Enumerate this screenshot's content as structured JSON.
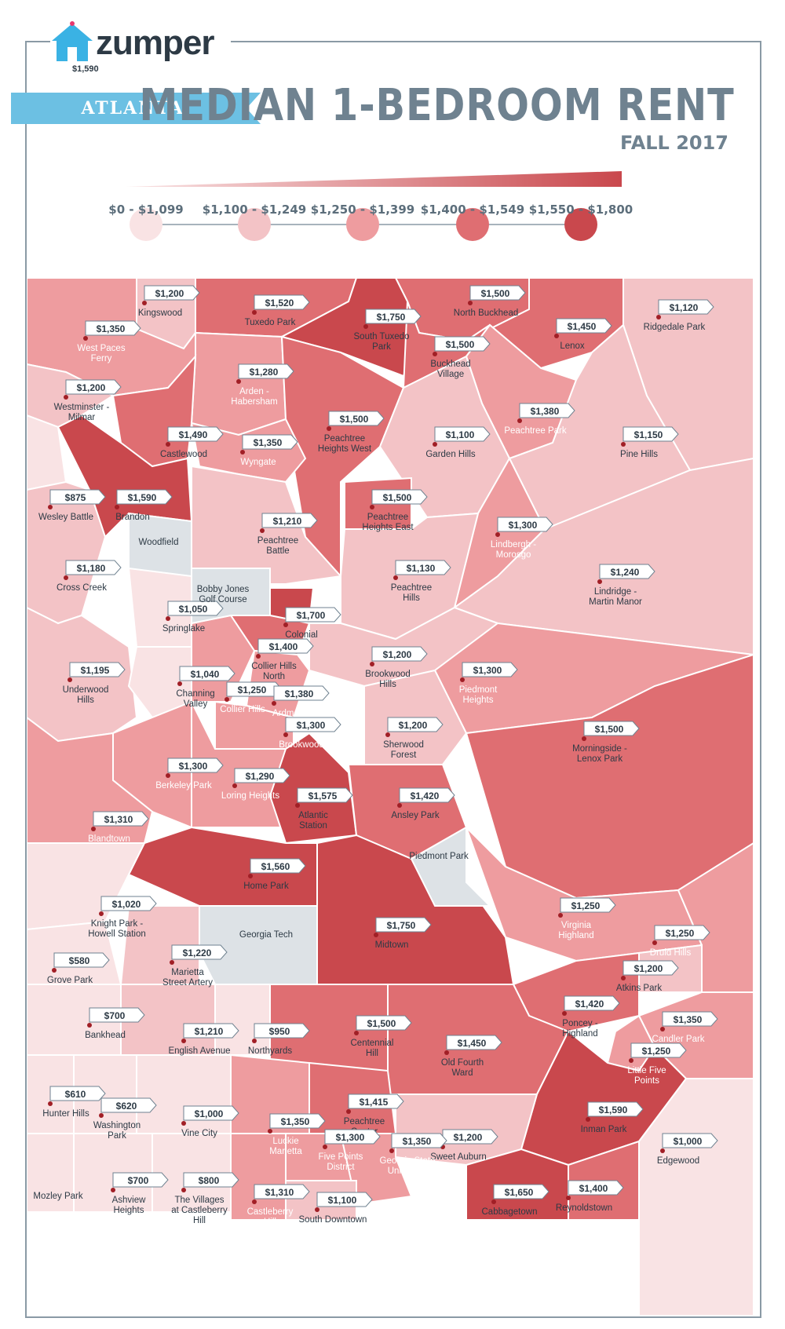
{
  "brand": {
    "name": "zumper",
    "price_tag": "$1,590"
  },
  "header": {
    "city": "ATLANTA",
    "title": "MEDIAN 1-BEDROOM RENT",
    "subtitle": "FALL 2017"
  },
  "colors": {
    "c0": "#f9e3e4",
    "c1": "#f3c3c6",
    "c2": "#ee9c9f",
    "c3": "#df6e72",
    "c4": "#c9484d",
    "gray": "#dde2e6",
    "ribbon": "#6cc0e3",
    "frame": "#8a9aa5",
    "title": "#6f8290"
  },
  "legend": [
    {
      "label": "$0 - $1,099",
      "color": "#f9e3e4"
    },
    {
      "label": "$1,100 - $1,249",
      "color": "#f3c3c6"
    },
    {
      "label": "$1,250 - $1,399",
      "color": "#ee9c9f"
    },
    {
      "label": "$1,400 - $1,549",
      "color": "#df6e72"
    },
    {
      "label": "$1,550 - $1,800",
      "color": "#c9484d"
    }
  ],
  "neighborhoods": [
    {
      "name": "Kingswood",
      "price": "$1,200"
    },
    {
      "name": "Tuxedo Park",
      "price": "$1,520"
    },
    {
      "name": "North Buckhead",
      "price": "$1,500"
    },
    {
      "name": "South Tuxedo Park",
      "price": "$1,750"
    },
    {
      "name": "Ridgedale Park",
      "price": "$1,120"
    },
    {
      "name": "West Paces Ferry",
      "price": "$1,350"
    },
    {
      "name": "Lenox",
      "price": "$1,450"
    },
    {
      "name": "Buckhead Village",
      "price": "$1,500"
    },
    {
      "name": "Arden - Habersham",
      "price": "$1,280"
    },
    {
      "name": "Westminster - Milmar",
      "price": "$1,200"
    },
    {
      "name": "Peachtree Park",
      "price": "$1,380"
    },
    {
      "name": "Peachtree Heights West",
      "price": "$1,500"
    },
    {
      "name": "Castlewood",
      "price": "$1,490"
    },
    {
      "name": "Garden Hills",
      "price": "$1,100"
    },
    {
      "name": "Pine Hills",
      "price": "$1,150"
    },
    {
      "name": "Wyngate",
      "price": "$1,350"
    },
    {
      "name": "Wesley Battle",
      "price": "$875"
    },
    {
      "name": "Brandon",
      "price": "$1,590"
    },
    {
      "name": "Peachtree Heights East",
      "price": "$1,500"
    },
    {
      "name": "Peachtree Battle",
      "price": "$1,210"
    },
    {
      "name": "Lindbergh - Morosgo",
      "price": "$1,300"
    },
    {
      "name": "Cross Creek",
      "price": "$1,180"
    },
    {
      "name": "Peachtree Hills",
      "price": "$1,130"
    },
    {
      "name": "Lindridge - Martin Manor",
      "price": "$1,240"
    },
    {
      "name": "Springlake",
      "price": "$1,050"
    },
    {
      "name": "Colonial",
      "price": "$1,700"
    },
    {
      "name": "Collier Hills North",
      "price": "$1,400"
    },
    {
      "name": "Brookwood Hills",
      "price": "$1,200"
    },
    {
      "name": "Underwood Hills",
      "price": "$1,195"
    },
    {
      "name": "Channing Valley",
      "price": "$1,040"
    },
    {
      "name": "Piedmont Heights",
      "price": "$1,300"
    },
    {
      "name": "Collier Hills",
      "price": "$1,250"
    },
    {
      "name": "Ardmore",
      "price": "$1,380"
    },
    {
      "name": "Brookwood",
      "price": "$1,300"
    },
    {
      "name": "Sherwood Forest",
      "price": "$1,200"
    },
    {
      "name": "Morningside - Lenox Park",
      "price": "$1,500"
    },
    {
      "name": "Berkeley Park",
      "price": "$1,300"
    },
    {
      "name": "Loring Heights",
      "price": "$1,290"
    },
    {
      "name": "Atlantic Station",
      "price": "$1,575"
    },
    {
      "name": "Ansley Park",
      "price": "$1,420"
    },
    {
      "name": "Blandtown",
      "price": "$1,310"
    },
    {
      "name": "Home Park",
      "price": "$1,560"
    },
    {
      "name": "Knight Park - Howell Station",
      "price": "$1,020"
    },
    {
      "name": "Virginia Highland",
      "price": "$1,250"
    },
    {
      "name": "Midtown",
      "price": "$1,750"
    },
    {
      "name": "Druid Hills",
      "price": "$1,250"
    },
    {
      "name": "Marietta Street Artery",
      "price": "$1,220"
    },
    {
      "name": "Atkins Park",
      "price": "$1,200"
    },
    {
      "name": "Grove Park",
      "price": "$580"
    },
    {
      "name": "Poncey - Highland",
      "price": "$1,420"
    },
    {
      "name": "Bankhead",
      "price": "$700"
    },
    {
      "name": "Candler Park",
      "price": "$1,350"
    },
    {
      "name": "English Avenue",
      "price": "$1,210"
    },
    {
      "name": "Northyards",
      "price": "$950"
    },
    {
      "name": "Centennial Hill",
      "price": "$1,500"
    },
    {
      "name": "Old Fourth Ward",
      "price": "$1,450"
    },
    {
      "name": "Little Five Points",
      "price": "$1,250"
    },
    {
      "name": "Hunter Hills",
      "price": "$610"
    },
    {
      "name": "Washington Park",
      "price": "$620"
    },
    {
      "name": "Vine City",
      "price": "$1,000"
    },
    {
      "name": "Luckie Marietta",
      "price": "$1,350"
    },
    {
      "name": "Peachtree Center",
      "price": "$1,415"
    },
    {
      "name": "Inman Park",
      "price": "$1,590"
    },
    {
      "name": "Five Points District",
      "price": "$1,300"
    },
    {
      "name": "Sweet Auburn",
      "price": "$1,200"
    },
    {
      "name": "Georgia State University",
      "price": "$1,350"
    },
    {
      "name": "Edgewood",
      "price": "$1,000"
    },
    {
      "name": "Mozley Park",
      "price": ""
    },
    {
      "name": "Ashview Heights",
      "price": "$700"
    },
    {
      "name": "The Villages at Castleberry Hill",
      "price": "$800"
    },
    {
      "name": "Castleberry Hill",
      "price": "$1,310"
    },
    {
      "name": "South Downtown",
      "price": "$1,100"
    },
    {
      "name": "Cabbagetown",
      "price": "$1,650"
    },
    {
      "name": "Reynoldstown",
      "price": "$1,400"
    }
  ],
  "parks": [
    "Woodfield",
    "Bobby Jones Golf Course",
    "Piedmont Park",
    "Georgia Tech"
  ]
}
